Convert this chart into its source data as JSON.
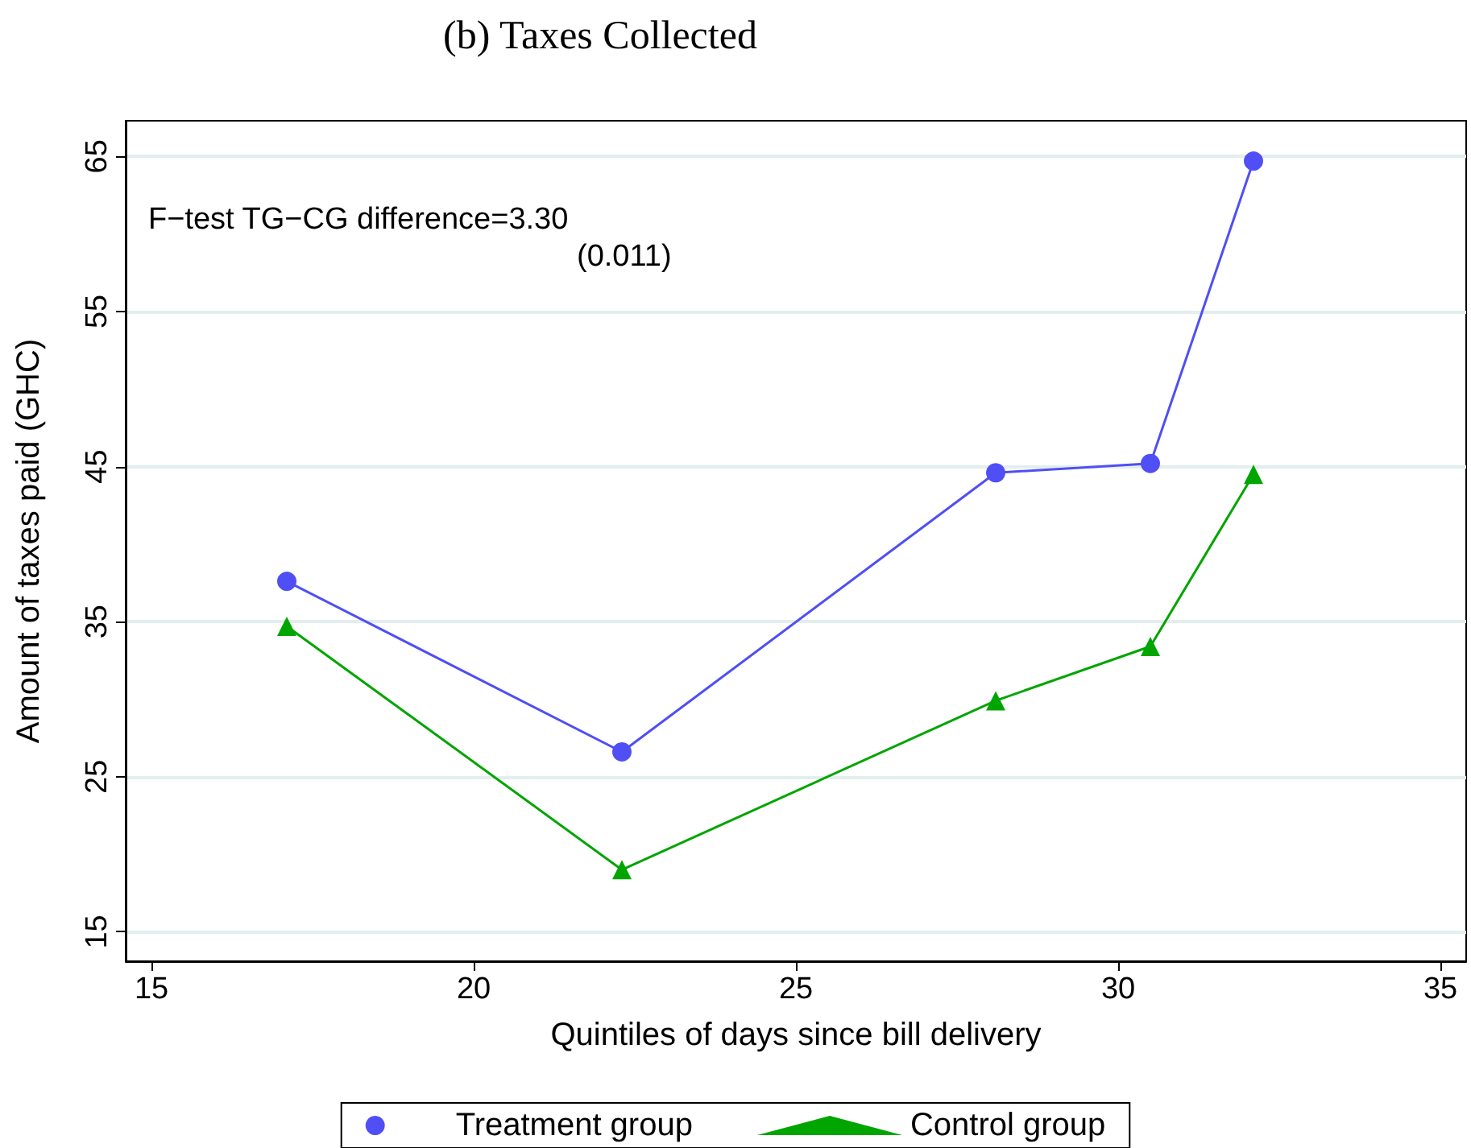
{
  "chart_data": {
    "type": "line",
    "title": "(b) Taxes Collected",
    "xlabel": "Quintiles of days since bill delivery",
    "ylabel": "Amount of taxes paid (GHC)",
    "annotations": [
      "F−test TG−CG difference=3.30",
      "(0.011)"
    ],
    "series": [
      {
        "name": "Treatment group",
        "color": "#4f4ff5",
        "marker": "circle",
        "x": [
          17.1,
          22.3,
          28.1,
          30.5,
          32.1
        ],
        "values": [
          37.6,
          26.6,
          44.6,
          45.2,
          64.7
        ]
      },
      {
        "name": "Control group",
        "color": "#00a500",
        "marker": "triangle",
        "x": [
          17.1,
          22.3,
          28.1,
          30.5,
          32.1
        ],
        "values": [
          34.7,
          19.0,
          29.9,
          33.4,
          44.5
        ]
      }
    ],
    "xlim": [
      14.6,
      35.4
    ],
    "xticks": [
      15,
      20,
      25,
      30,
      35
    ],
    "ylim": [
      13.1,
      67.3
    ],
    "yticks": [
      15,
      25,
      35,
      45,
      55,
      65
    ],
    "grid": "y",
    "legend": "bottom",
    "line_style": "solid"
  }
}
